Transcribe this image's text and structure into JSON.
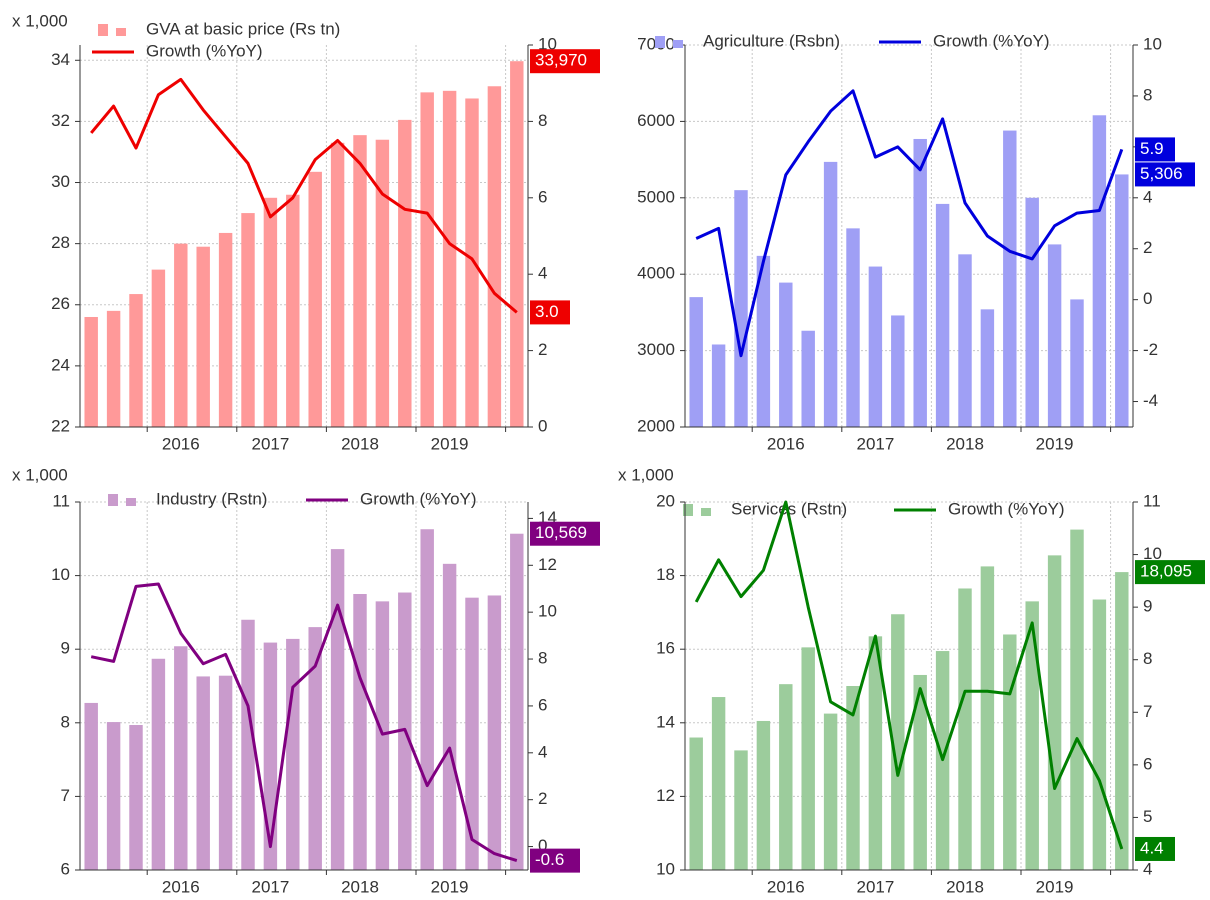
{
  "chart_data": [
    {
      "type": "combo",
      "y_unit": "x 1,000",
      "categories": [
        null,
        null,
        null,
        null,
        "2016",
        null,
        null,
        null,
        "2017",
        null,
        null,
        null,
        "2018",
        null,
        null,
        null,
        "2019",
        null,
        null,
        null
      ],
      "ylim": [
        22,
        34.5
      ],
      "yticks": [
        22,
        24,
        26,
        28,
        30,
        32,
        34
      ],
      "y2lim": [
        0,
        10
      ],
      "y2ticks": [
        0,
        2,
        4,
        6,
        8,
        10
      ],
      "series": [
        {
          "name": "GVA at basic price (Rs tn)",
          "color": "#ff9999",
          "values": [
            25.6,
            25.8,
            26.35,
            27.15,
            28.0,
            27.9,
            28.35,
            29.0,
            29.5,
            29.6,
            30.35,
            31.3,
            31.55,
            31.4,
            32.05,
            32.95,
            33.0,
            32.75,
            33.15,
            33.97
          ],
          "value_labels": [
            null,
            null,
            null,
            null,
            null,
            null,
            null,
            null,
            null,
            null,
            null,
            null,
            null,
            null,
            null,
            null,
            null,
            null,
            null,
            "33,970"
          ]
        },
        {
          "name": "Growth (%YoY)",
          "color": "#ee0000",
          "axis": "y2",
          "values": [
            7.7,
            8.4,
            7.3,
            8.7,
            9.1,
            8.3,
            7.6,
            6.9,
            5.5,
            6.0,
            7.0,
            7.5,
            6.9,
            6.1,
            5.7,
            5.6,
            4.8,
            4.4,
            3.5,
            3.0
          ],
          "value_labels": [
            null,
            null,
            null,
            null,
            null,
            null,
            null,
            null,
            null,
            null,
            null,
            null,
            null,
            null,
            null,
            null,
            null,
            null,
            null,
            "3.0"
          ]
        }
      ]
    },
    {
      "type": "combo",
      "categories": [
        null,
        null,
        null,
        null,
        "2016",
        null,
        null,
        null,
        "2017",
        null,
        null,
        null,
        "2018",
        null,
        null,
        null,
        "2019",
        null,
        null,
        null
      ],
      "ylim": [
        2000,
        7000
      ],
      "yticks": [
        2000,
        3000,
        4000,
        5000,
        6000,
        7000
      ],
      "y2lim": [
        -5,
        10
      ],
      "y2ticks": [
        -4,
        -2,
        0,
        2,
        4,
        6,
        8,
        10
      ],
      "series": [
        {
          "name": "Agriculture (Rsbn)",
          "color": "#9f9ff5",
          "values": [
            3700,
            3080,
            5100,
            4240,
            3890,
            3260,
            5470,
            4600,
            4100,
            3460,
            5770,
            4920,
            4260,
            3540,
            5880,
            5000,
            4390,
            3670,
            6080,
            5306
          ],
          "value_labels": [
            null,
            null,
            null,
            null,
            null,
            null,
            null,
            null,
            null,
            null,
            null,
            null,
            null,
            null,
            null,
            null,
            null,
            null,
            null,
            "5,306"
          ]
        },
        {
          "name": "Growth (%YoY)",
          "color": "#0000dd",
          "axis": "y2",
          "values": [
            2.4,
            2.8,
            -2.2,
            1.5,
            4.9,
            6.2,
            7.4,
            8.2,
            5.6,
            6.0,
            5.1,
            7.1,
            3.8,
            2.5,
            1.9,
            1.6,
            2.9,
            3.4,
            3.5,
            5.9
          ],
          "value_labels": [
            null,
            null,
            null,
            null,
            null,
            null,
            null,
            null,
            null,
            null,
            null,
            null,
            null,
            null,
            null,
            null,
            null,
            null,
            null,
            "5.9"
          ]
        }
      ]
    },
    {
      "type": "combo",
      "y_unit": "x 1,000",
      "categories": [
        null,
        null,
        null,
        null,
        "2016",
        null,
        null,
        null,
        "2017",
        null,
        null,
        null,
        "2018",
        null,
        null,
        null,
        "2019",
        null,
        null,
        null
      ],
      "ylim": [
        6,
        11
      ],
      "yticks": [
        6,
        7,
        8,
        9,
        10,
        11
      ],
      "y2lim": [
        -1,
        14.7
      ],
      "y2ticks": [
        0,
        2,
        4,
        6,
        8,
        10,
        12,
        14
      ],
      "series": [
        {
          "name": "Industry (Rstn)",
          "color": "#c99bcc",
          "values": [
            8.27,
            8.01,
            7.97,
            8.87,
            9.04,
            8.63,
            8.64,
            9.4,
            9.09,
            9.14,
            9.3,
            10.36,
            9.75,
            9.65,
            9.77,
            10.63,
            10.16,
            9.7,
            9.73,
            10.569
          ],
          "value_labels": [
            null,
            null,
            null,
            null,
            null,
            null,
            null,
            null,
            null,
            null,
            null,
            null,
            null,
            null,
            null,
            null,
            null,
            null,
            null,
            "10,569"
          ]
        },
        {
          "name": "Growth (%YoY)",
          "color": "#800080",
          "axis": "y2",
          "values": [
            8.1,
            7.9,
            11.1,
            11.2,
            9.1,
            7.8,
            8.2,
            6.0,
            0.0,
            6.8,
            7.7,
            10.3,
            7.2,
            4.8,
            5.0,
            2.6,
            4.2,
            0.3,
            -0.3,
            -0.6
          ],
          "value_labels": [
            null,
            null,
            null,
            null,
            null,
            null,
            null,
            null,
            null,
            null,
            null,
            null,
            null,
            null,
            null,
            null,
            null,
            null,
            null,
            "-0.6"
          ]
        }
      ]
    },
    {
      "type": "combo",
      "y_unit": "x 1,000",
      "categories": [
        null,
        null,
        null,
        null,
        "2016",
        null,
        null,
        null,
        "2017",
        null,
        null,
        null,
        "2018",
        null,
        null,
        null,
        "2019",
        null,
        null,
        null
      ],
      "ylim": [
        10,
        20
      ],
      "yticks": [
        10,
        12,
        14,
        16,
        18,
        20
      ],
      "y2lim": [
        4,
        11
      ],
      "y2ticks": [
        4,
        5,
        6,
        7,
        8,
        9,
        10,
        11
      ],
      "series": [
        {
          "name": "Services (Rstn)",
          "color": "#9ccc9c",
          "values": [
            13.6,
            14.7,
            13.25,
            14.05,
            15.05,
            16.05,
            14.25,
            15.0,
            16.35,
            16.95,
            15.3,
            15.95,
            17.65,
            18.25,
            16.4,
            17.3,
            18.55,
            19.25,
            17.35,
            18.095
          ],
          "value_labels": [
            null,
            null,
            null,
            null,
            null,
            null,
            null,
            null,
            null,
            null,
            null,
            null,
            null,
            null,
            null,
            null,
            null,
            null,
            null,
            "18,095"
          ]
        },
        {
          "name": "Growth (%YoY)",
          "color": "#008000",
          "axis": "y2",
          "values": [
            9.1,
            9.9,
            9.2,
            9.7,
            11.0,
            9.0,
            7.2,
            6.95,
            8.45,
            5.8,
            7.45,
            6.1,
            7.4,
            7.4,
            7.35,
            8.7,
            5.55,
            6.5,
            5.7,
            4.4
          ],
          "value_labels": [
            null,
            null,
            null,
            null,
            null,
            null,
            null,
            null,
            null,
            null,
            null,
            null,
            null,
            null,
            null,
            null,
            null,
            null,
            null,
            "4.4"
          ]
        }
      ]
    }
  ]
}
